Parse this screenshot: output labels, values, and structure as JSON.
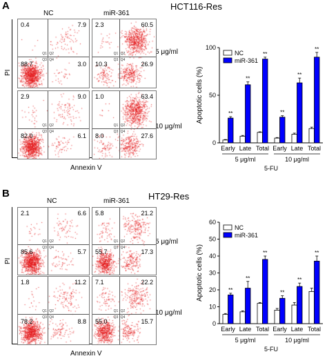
{
  "panels": [
    {
      "letter": "A",
      "title": "HCT116-Res",
      "col_labels": [
        "NC",
        "miR-361"
      ],
      "dose_labels": [
        "5 μg/ml",
        "10 μg/ml"
      ],
      "y_axis_label": "PI",
      "x_axis_label": "Annexin V",
      "quad_tags": [
        "Q1",
        "Q2",
        "Q3",
        "Q4"
      ],
      "facs": [
        {
          "group": "NC",
          "dose": "5 μg/ml",
          "ul": "0.4",
          "ur": "7.9",
          "ll": "88.7",
          "lr": "3.0"
        },
        {
          "group": "miR-361",
          "dose": "5 μg/ml",
          "ul": "2.3",
          "ur": "60.5",
          "ll": "10.3",
          "lr": "26.9"
        },
        {
          "group": "NC",
          "dose": "10 μg/ml",
          "ul": "2.9",
          "ur": "9.0",
          "ll": "82.0",
          "lr": "6.1"
        },
        {
          "group": "miR-361",
          "dose": "10 μg/ml",
          "ul": "1.0",
          "ur": "63.4",
          "ll": "8.0",
          "lr": "27.6"
        }
      ]
    },
    {
      "letter": "B",
      "title": "HT29-Res",
      "col_labels": [
        "NC",
        "miR-361"
      ],
      "dose_labels": [
        "5 μg/ml",
        "10 μg/ml"
      ],
      "y_axis_label": "PI",
      "x_axis_label": "Annexin V",
      "quad_tags": [
        "Q1",
        "Q2",
        "Q3",
        "Q4"
      ],
      "facs": [
        {
          "group": "NC",
          "dose": "5 μg/ml",
          "ul": "2.1",
          "ur": "6.6",
          "ll": "85.6",
          "lr": "5.7"
        },
        {
          "group": "miR-361",
          "dose": "5 μg/ml",
          "ul": "5.8",
          "ur": "21.2",
          "ll": "55.7",
          "lr": "17.3"
        },
        {
          "group": "NC",
          "dose": "10 μg/ml",
          "ul": "1.8",
          "ur": "11.2",
          "ll": "78.2",
          "lr": "8.8"
        },
        {
          "group": "miR-361",
          "dose": "10 μg/ml",
          "ul": "7.1",
          "ur": "22.2",
          "ll": "55.0",
          "lr": "15.7"
        }
      ]
    }
  ],
  "chart_data": [
    {
      "type": "bar",
      "ylabel": "Apoptotic cells (%)",
      "xlabel": "5-FU",
      "ylim": [
        0,
        100
      ],
      "yticks": [
        0,
        50,
        100
      ],
      "categories": [
        "Early",
        "Late",
        "Total",
        "Early",
        "Late",
        "Total"
      ],
      "groups": [
        "5 μg/ml",
        "10 μg/ml"
      ],
      "series": [
        {
          "name": "NC",
          "color": "#ffffff",
          "values": [
            3,
            7,
            11,
            5,
            9,
            15
          ],
          "errors": [
            0.5,
            0.8,
            0.6,
            0.6,
            1.2,
            1.5
          ]
        },
        {
          "name": "miR-361",
          "color": "#0000ff",
          "values": [
            26,
            61,
            88,
            27,
            63,
            90
          ],
          "errors": [
            1.5,
            3,
            2,
            1.5,
            5,
            5
          ]
        }
      ],
      "annotations": [
        "**",
        "**",
        "**",
        "**",
        "**",
        "**"
      ],
      "legend": "top-left"
    },
    {
      "type": "bar",
      "ylabel": "Apoptotic cells (%)",
      "xlabel": "5-FU",
      "ylim": [
        0,
        60
      ],
      "yticks": [
        0,
        10,
        20,
        30,
        40,
        50,
        60
      ],
      "categories": [
        "Early",
        "Late",
        "Total",
        "Early",
        "Late",
        "Total"
      ],
      "groups": [
        "5 μg/ml",
        "10 μg/ml"
      ],
      "series": [
        {
          "name": "NC",
          "color": "#ffffff",
          "values": [
            5.5,
            7,
            12,
            8,
            11,
            19
          ],
          "errors": [
            0.5,
            0.6,
            0.5,
            1,
            1.5,
            2
          ]
        },
        {
          "name": "miR-361",
          "color": "#0000ff",
          "values": [
            17,
            21,
            38,
            15,
            22,
            37
          ],
          "errors": [
            1,
            4,
            2,
            1.5,
            2,
            3
          ]
        }
      ],
      "annotations": [
        "**",
        "**",
        "**",
        "**",
        "**",
        "**"
      ],
      "legend": "top-left"
    }
  ]
}
